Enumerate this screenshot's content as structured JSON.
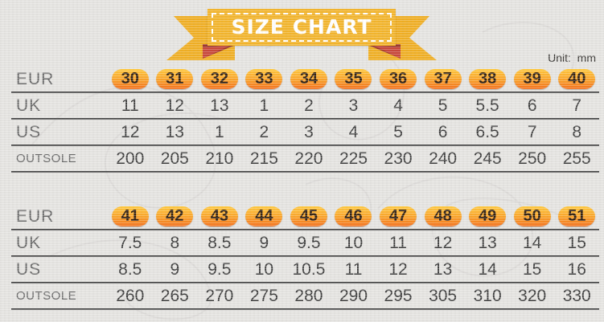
{
  "banner": {
    "title": "SIZE CHART"
  },
  "unit_label": "Unit:  mm",
  "colors": {
    "background": "#e4e3e0",
    "ribbon_yellow": "#f2b42c",
    "ribbon_fold_dark_red": "#9c352b",
    "ribbon_fold_bright_red": "#c8473a",
    "badge_gradient_top": "#ffc83d",
    "badge_gradient_bottom": "#f3701e",
    "badge_text": "#302013",
    "row_line": "#454545",
    "label_text": "#676767",
    "value_text": "#3a3a3a"
  },
  "chart_data": [
    {
      "type": "table",
      "title": "SIZE CHART",
      "unit": "mm",
      "rows": [
        {
          "label": "EUR",
          "style": "badge",
          "values": [
            "30",
            "31",
            "32",
            "33",
            "34",
            "35",
            "36",
            "37",
            "38",
            "39",
            "40"
          ]
        },
        {
          "label": "UK",
          "style": "plain",
          "values": [
            "11",
            "12",
            "13",
            "1",
            "2",
            "3",
            "4",
            "5",
            "5.5",
            "6",
            "7"
          ]
        },
        {
          "label": "US",
          "style": "plain",
          "values": [
            "12",
            "13",
            "1",
            "2",
            "3",
            "4",
            "5",
            "6",
            "6.5",
            "7",
            "8"
          ]
        },
        {
          "label": "OUTSOLE",
          "style": "plain",
          "values": [
            "200",
            "205",
            "210",
            "215",
            "220",
            "225",
            "230",
            "240",
            "245",
            "250",
            "255"
          ]
        }
      ]
    },
    {
      "type": "table",
      "rows": [
        {
          "label": "EUR",
          "style": "badge",
          "values": [
            "41",
            "42",
            "43",
            "44",
            "45",
            "46",
            "47",
            "48",
            "49",
            "50",
            "51"
          ]
        },
        {
          "label": "UK",
          "style": "plain",
          "values": [
            "7.5",
            "8",
            "8.5",
            "9",
            "9.5",
            "10",
            "11",
            "12",
            "13",
            "14",
            "15"
          ]
        },
        {
          "label": "US",
          "style": "plain",
          "values": [
            "8.5",
            "9",
            "9.5",
            "10",
            "10.5",
            "11",
            "12",
            "13",
            "14",
            "15",
            "16"
          ]
        },
        {
          "label": "OUTSOLE",
          "style": "plain",
          "values": [
            "260",
            "265",
            "270",
            "275",
            "280",
            "290",
            "295",
            "305",
            "310",
            "320",
            "330"
          ]
        }
      ]
    }
  ]
}
